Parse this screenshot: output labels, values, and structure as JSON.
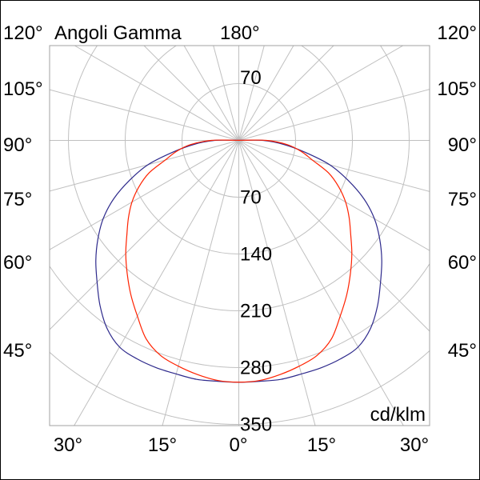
{
  "chart_data": {
    "type": "polar",
    "title": "Angoli Gamma",
    "unit_label": "cd/klm",
    "top_angle_label": "180°",
    "radial_ticks": [
      70,
      140,
      210,
      280,
      350
    ],
    "radial_tick_labels": [
      "70",
      "140",
      "210",
      "280",
      "350"
    ],
    "upper_radial_tick_label": "70",
    "rmax": 350,
    "angle_labels_side": [
      "120°",
      "105°",
      "90°",
      "75°",
      "60°",
      "45°"
    ],
    "angle_labels_bottom": [
      "30°",
      "15°",
      "0°",
      "15°",
      "30°"
    ],
    "angle_spoke_step_deg": 15,
    "grid": true,
    "colors": {
      "grid": "#c0c0c0",
      "frame": "#a0a0a0",
      "series_blue": "#2e2a8c",
      "series_red": "#ff2200"
    },
    "gamma_deg": [
      0,
      5,
      10,
      15,
      20,
      25,
      30,
      35,
      40,
      45,
      50,
      55,
      60,
      65,
      70,
      75,
      80,
      85,
      90,
      95,
      180
    ],
    "series": [
      {
        "color": "#2e2a8c",
        "values": [
          298,
          298,
          299,
          298,
          298,
          297,
          294,
          283,
          266,
          247,
          230,
          212,
          193,
          170,
          143,
          116,
          82,
          55,
          30,
          2,
          0
        ]
      },
      {
        "color": "#ff2200",
        "values": [
          298,
          297,
          293,
          288,
          282,
          270,
          250,
          232,
          214,
          197,
          180,
          166,
          152,
          136,
          118,
          94,
          78,
          60,
          34,
          2,
          0
        ]
      }
    ],
    "symmetric": true
  }
}
